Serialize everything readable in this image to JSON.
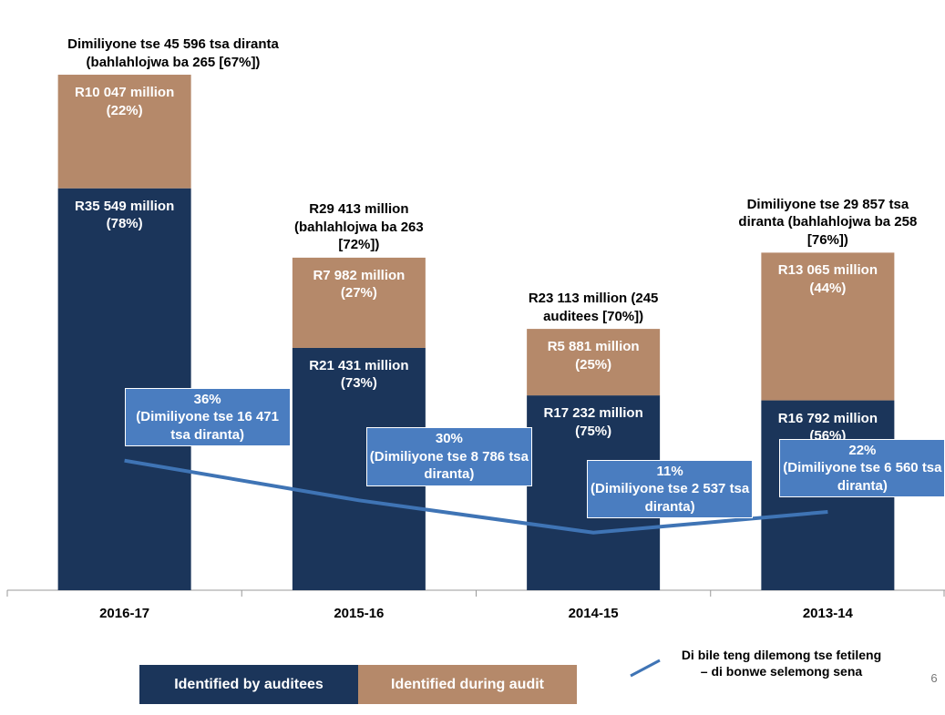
{
  "chart_data": {
    "type": "bar",
    "stacked": true,
    "categories": [
      "2016-17",
      "2015-16",
      "2014-15",
      "2013-14"
    ],
    "series": [
      {
        "name": "Identified by auditees",
        "color": "#1b355a",
        "values": [
          35549,
          21431,
          17232,
          16792
        ],
        "value_labels": [
          "R35 549 million (78%)",
          "R21 431 million (73%)",
          "R17 232 million (75%)",
          "R16 792 million (56%)"
        ]
      },
      {
        "name": "Identified during audit",
        "color": "#b5896a",
        "values": [
          10047,
          7982,
          5881,
          13065
        ],
        "value_labels": [
          "R10 047 million (22%)",
          "R7 982 million (27%)",
          "R5 881 million (25%)",
          "R13 065 million (44%)"
        ]
      },
      {
        "name": "Di bile teng dilemong tse fetileng – di bonwe selemong sena",
        "type": "line",
        "axis": "y2",
        "color": "#3f74b5",
        "values": [
          16471,
          8786,
          2537,
          6560
        ],
        "share_labels": [
          "36%",
          "30%",
          "11%",
          "22%"
        ],
        "value_labels": [
          "(Dimiliyone tse 16 471 tsa diranta)",
          "(Dimiliyone tse 8 786 tsa diranta)",
          "(Dimiliyone tse 2 537 tsa diranta)",
          "(Dimiliyone tse 6 560 tsa diranta)"
        ]
      }
    ],
    "total_labels": [
      "Dimiliyone tse 45 596 tsa diranta (bahlahlojwa ba 265 [67%])",
      "R29 413 million (bahlahlojwa ba 263 [72%])",
      "R23 113 million (245 auditees [70%])",
      "Dimiliyone tse 29 857 tsa diranta (bahlahlojwa ba 258 [76%])"
    ],
    "ylim": [
      0,
      46000
    ],
    "y2lim": [
      -8600,
      92000
    ],
    "page_number": "6"
  }
}
